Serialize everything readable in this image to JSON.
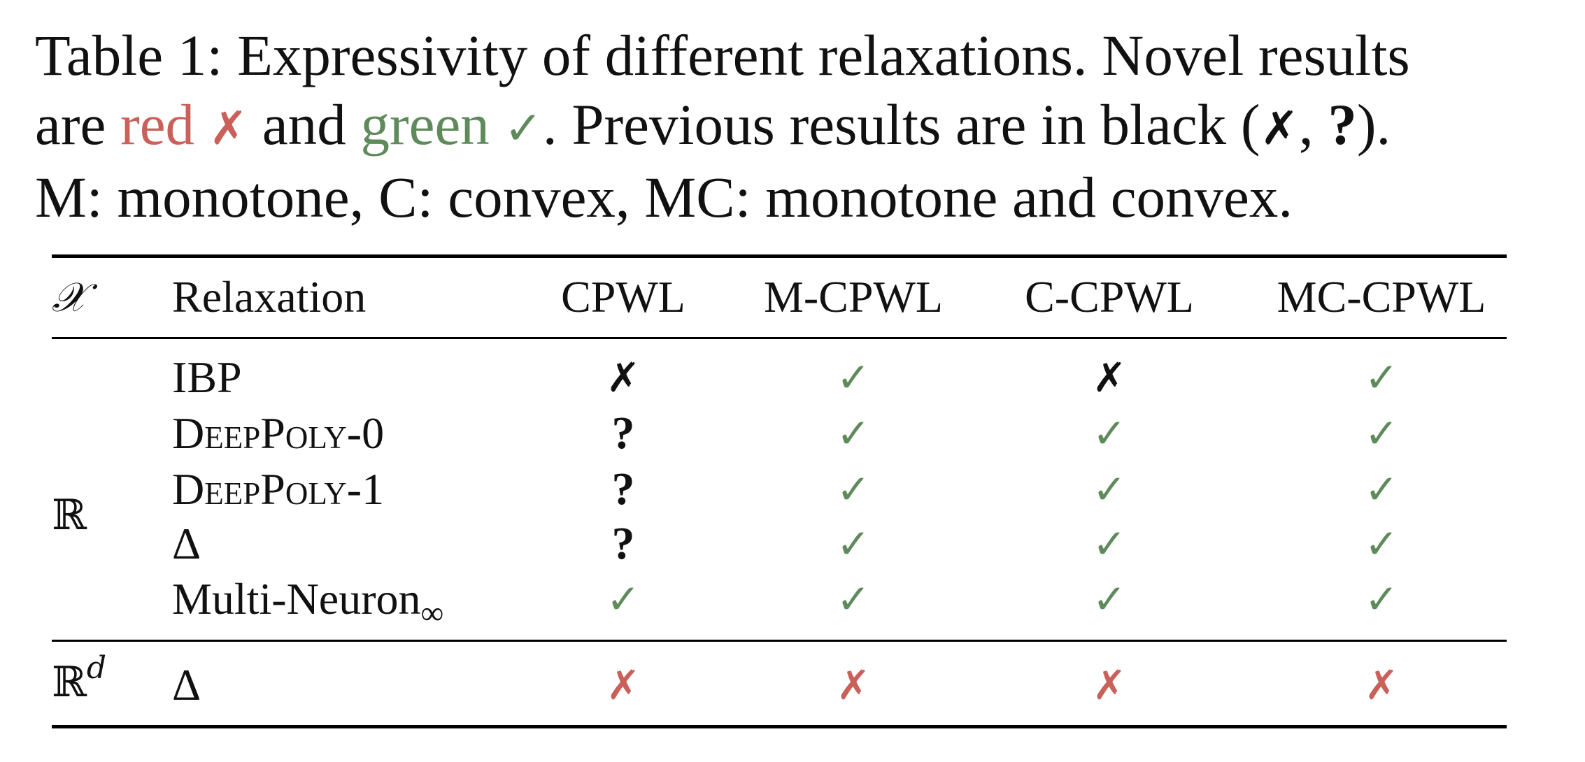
{
  "caption": {
    "line1": "Table 1: Expressivity of different relaxations. Novel results",
    "line2_a": "are ",
    "line2_red": "red",
    "line2_b": " and ",
    "line2_green": "green",
    "line2_c": ".  Previous results are in black (",
    "line2_sep": ", ",
    "line2_end": ").",
    "line3": "M: monotone, C: convex, MC: monotone and convex.",
    "cross": "✗",
    "check": "✓",
    "question": "?"
  },
  "colors": {
    "red": "#c9605a",
    "green": "#5f8a5b",
    "black": "#111111"
  },
  "table": {
    "headers": [
      "𝒳",
      "Relaxation",
      "CPWL",
      "M-CPWL",
      "C-CPWL",
      "MC-CPWL"
    ],
    "groups": [
      {
        "domain": "ℝ",
        "rows": [
          {
            "relaxation": "IBP",
            "cells": [
              {
                "sym": "✗",
                "color": "black"
              },
              {
                "sym": "✓",
                "color": "green"
              },
              {
                "sym": "✗",
                "color": "black"
              },
              {
                "sym": "✓",
                "color": "green"
              }
            ]
          },
          {
            "relaxation": "DeepPoly-0",
            "cells": [
              {
                "sym": "?",
                "color": "black"
              },
              {
                "sym": "✓",
                "color": "green"
              },
              {
                "sym": "✓",
                "color": "green"
              },
              {
                "sym": "✓",
                "color": "green"
              }
            ]
          },
          {
            "relaxation": "DeepPoly-1",
            "cells": [
              {
                "sym": "?",
                "color": "black"
              },
              {
                "sym": "✓",
                "color": "green"
              },
              {
                "sym": "✓",
                "color": "green"
              },
              {
                "sym": "✓",
                "color": "green"
              }
            ]
          },
          {
            "relaxation": "Δ",
            "cells": [
              {
                "sym": "?",
                "color": "black"
              },
              {
                "sym": "✓",
                "color": "green"
              },
              {
                "sym": "✓",
                "color": "green"
              },
              {
                "sym": "✓",
                "color": "green"
              }
            ]
          },
          {
            "relaxation": "Multi-Neuron",
            "relaxation_sub": "∞",
            "cells": [
              {
                "sym": "✓",
                "color": "green"
              },
              {
                "sym": "✓",
                "color": "green"
              },
              {
                "sym": "✓",
                "color": "green"
              },
              {
                "sym": "✓",
                "color": "green"
              }
            ]
          }
        ]
      },
      {
        "domain": "ℝ",
        "domain_sup": "d",
        "rows": [
          {
            "relaxation": "Δ",
            "cells": [
              {
                "sym": "✗",
                "color": "red"
              },
              {
                "sym": "✗",
                "color": "red"
              },
              {
                "sym": "✗",
                "color": "red"
              },
              {
                "sym": "✗",
                "color": "red"
              }
            ]
          }
        ]
      }
    ]
  }
}
